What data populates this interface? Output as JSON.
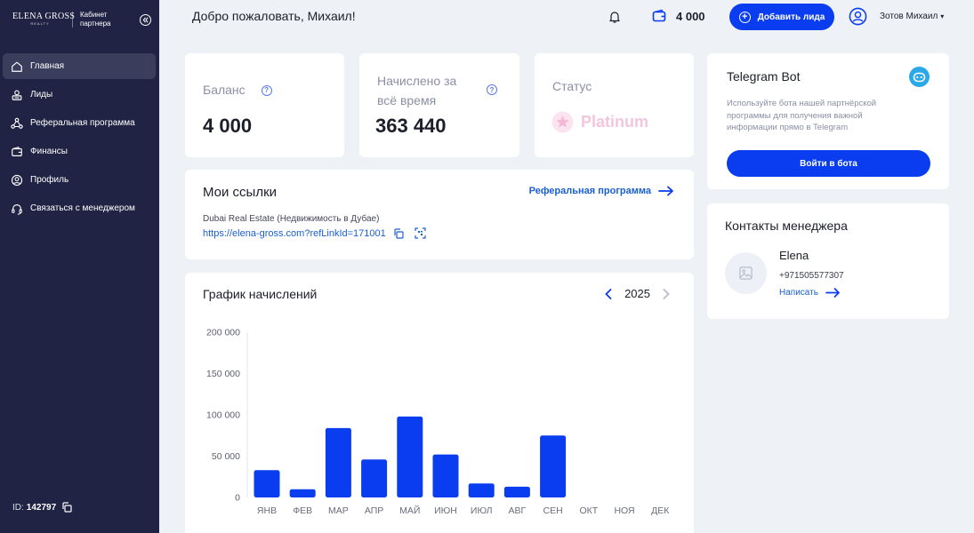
{
  "brand": {
    "logo_main": "ELENA GROSS",
    "logo_sub": "REALTY",
    "cabinet_label": "Кабинет партнера"
  },
  "sidebar": {
    "items": [
      {
        "label": "Главная",
        "icon": "home-icon"
      },
      {
        "label": "Лиды",
        "icon": "leads-icon"
      },
      {
        "label": "Реферальная программа",
        "icon": "referral-icon"
      },
      {
        "label": "Финансы",
        "icon": "finance-icon"
      },
      {
        "label": "Профиль",
        "icon": "profile-icon"
      },
      {
        "label": "Связаться с менеджером",
        "icon": "headset-icon"
      }
    ],
    "active_index": 0,
    "id_label": "ID:",
    "id_value": "142797"
  },
  "header": {
    "welcome": "Добро пожаловать, Михаил!",
    "wallet_value": "4 000",
    "add_lead_label": "Добавить лида",
    "user_name": "Зотов Михаил"
  },
  "balance": {
    "title": "Баланс",
    "value": "4 000"
  },
  "accrued": {
    "title": "Начислено за всё время",
    "value": "363 440"
  },
  "status": {
    "title": "Статус",
    "value": "Platinum"
  },
  "links": {
    "title": "Мои ссылки",
    "referral_link_label": "Реферальная программа",
    "item_desc": "Dubai Real Estate (Недвижимость в Дубае)",
    "item_url": "https://elena-gross.com?refLinkId=171001"
  },
  "telegram": {
    "title": "Telegram Bot",
    "description": "Используйте бота нашей партнёрской программы для получения важной информации прямо в Telegram",
    "button_label": "Войти в бота"
  },
  "manager": {
    "title": "Контакты менеджера",
    "name": "Elena",
    "phone": "+971505577307",
    "write_label": "Написать"
  },
  "chart_section": {
    "title": "График начислений",
    "year": "2025"
  },
  "chart_data": {
    "type": "bar",
    "categories": [
      "ЯНВ",
      "ФЕВ",
      "МАР",
      "АПР",
      "МАЙ",
      "ИЮН",
      "ИЮЛ",
      "АВГ",
      "СЕН",
      "ОКТ",
      "НОЯ",
      "ДЕК"
    ],
    "values": [
      33000,
      10000,
      84000,
      46000,
      98000,
      52000,
      17000,
      13000,
      75000,
      0,
      0,
      0
    ],
    "ylim": [
      0,
      200000
    ],
    "yticks": [
      0,
      50000,
      100000,
      150000,
      200000
    ],
    "ytick_labels": [
      "0",
      "50 000",
      "100 000",
      "150 000",
      "200 000"
    ],
    "bar_color": "#0a3cf0"
  },
  "colors": {
    "accent": "#0a3cf0",
    "sidebar_bg": "#202343",
    "link": "#1a5fd1",
    "platinum": "#f3b8d6"
  }
}
